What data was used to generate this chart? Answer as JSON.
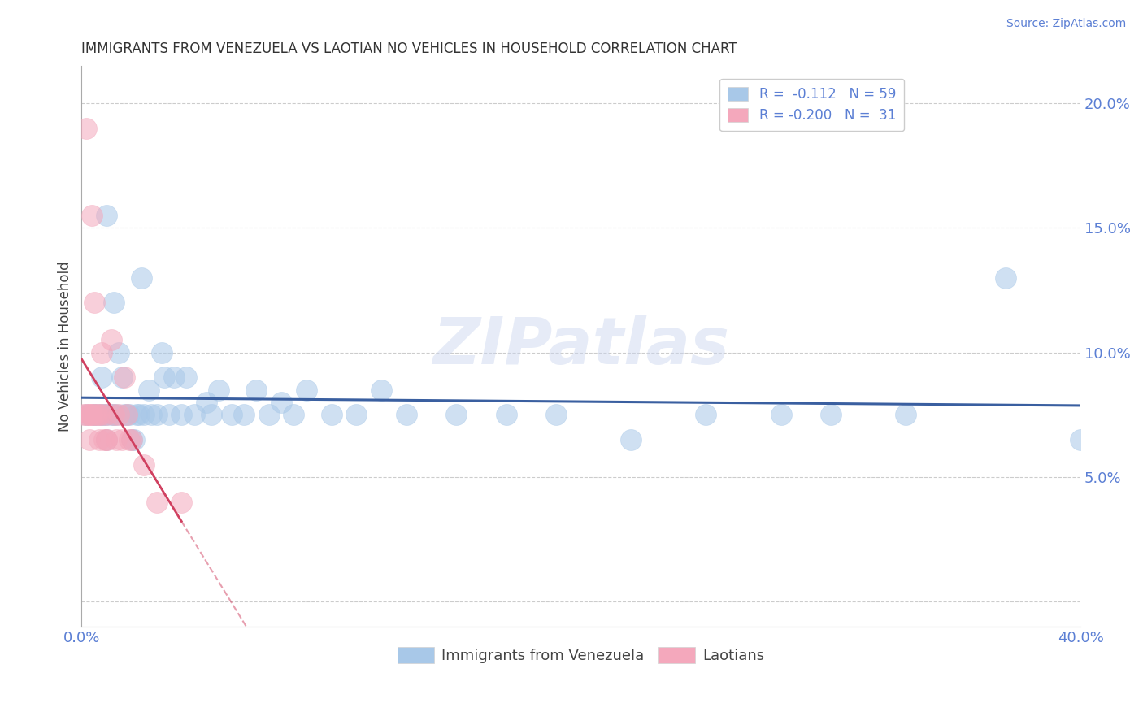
{
  "title": "IMMIGRANTS FROM VENEZUELA VS LAOTIAN NO VEHICLES IN HOUSEHOLD CORRELATION CHART",
  "source": "Source: ZipAtlas.com",
  "ylabel": "No Vehicles in Household",
  "xlim": [
    0.0,
    0.4
  ],
  "ylim": [
    -0.01,
    0.215
  ],
  "xticks": [
    0.0,
    0.05,
    0.1,
    0.15,
    0.2,
    0.25,
    0.3,
    0.35,
    0.4
  ],
  "yticks": [
    0.0,
    0.05,
    0.1,
    0.15,
    0.2
  ],
  "watermark": "ZIPatlas",
  "legend_r1": "R =  -0.112",
  "legend_n1": "N = 59",
  "legend_r2": "R = -0.200",
  "legend_n2": "N =  31",
  "blue_color": "#a8c8e8",
  "pink_color": "#f4a8bc",
  "line_blue": "#3a5fa0",
  "line_pink": "#d04060",
  "axis_color": "#5b7fd4",
  "title_color": "#333333",
  "blue_scatter_x": [
    0.002,
    0.005,
    0.005,
    0.007,
    0.008,
    0.008,
    0.009,
    0.01,
    0.01,
    0.01,
    0.012,
    0.013,
    0.013,
    0.014,
    0.015,
    0.016,
    0.017,
    0.018,
    0.019,
    0.02,
    0.021,
    0.022,
    0.023,
    0.024,
    0.025,
    0.027,
    0.028,
    0.03,
    0.032,
    0.033,
    0.035,
    0.037,
    0.04,
    0.042,
    0.045,
    0.05,
    0.052,
    0.055,
    0.06,
    0.065,
    0.07,
    0.075,
    0.08,
    0.085,
    0.09,
    0.1,
    0.11,
    0.12,
    0.13,
    0.15,
    0.17,
    0.19,
    0.22,
    0.25,
    0.28,
    0.3,
    0.33,
    0.37,
    0.4
  ],
  "blue_scatter_y": [
    0.075,
    0.075,
    0.075,
    0.075,
    0.075,
    0.09,
    0.075,
    0.155,
    0.075,
    0.065,
    0.075,
    0.12,
    0.075,
    0.075,
    0.1,
    0.09,
    0.075,
    0.075,
    0.075,
    0.065,
    0.065,
    0.075,
    0.075,
    0.13,
    0.075,
    0.085,
    0.075,
    0.075,
    0.1,
    0.09,
    0.075,
    0.09,
    0.075,
    0.09,
    0.075,
    0.08,
    0.075,
    0.085,
    0.075,
    0.075,
    0.085,
    0.075,
    0.08,
    0.075,
    0.085,
    0.075,
    0.075,
    0.085,
    0.075,
    0.075,
    0.075,
    0.075,
    0.065,
    0.075,
    0.075,
    0.075,
    0.075,
    0.13,
    0.065
  ],
  "pink_scatter_x": [
    0.001,
    0.002,
    0.002,
    0.003,
    0.003,
    0.003,
    0.004,
    0.004,
    0.005,
    0.005,
    0.006,
    0.007,
    0.007,
    0.008,
    0.008,
    0.009,
    0.01,
    0.01,
    0.01,
    0.012,
    0.013,
    0.014,
    0.015,
    0.016,
    0.017,
    0.018,
    0.019,
    0.02,
    0.025,
    0.03,
    0.04
  ],
  "pink_scatter_y": [
    0.075,
    0.19,
    0.075,
    0.075,
    0.075,
    0.065,
    0.155,
    0.075,
    0.12,
    0.075,
    0.075,
    0.075,
    0.065,
    0.1,
    0.075,
    0.065,
    0.075,
    0.065,
    0.065,
    0.105,
    0.075,
    0.065,
    0.075,
    0.065,
    0.09,
    0.075,
    0.065,
    0.065,
    0.055,
    0.04,
    0.04
  ]
}
